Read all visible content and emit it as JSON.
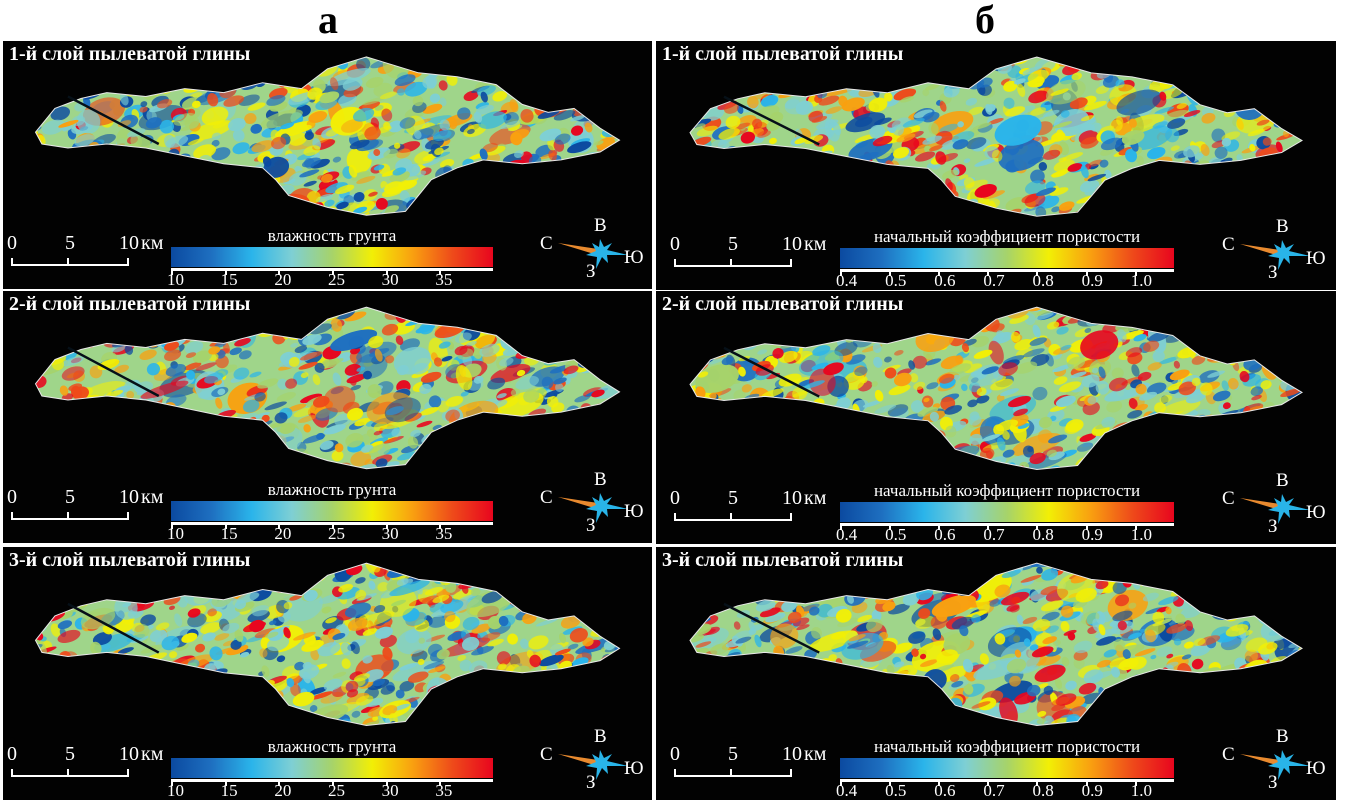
{
  "columns": [
    {
      "label": "а",
      "colorbar": {
        "title": "влажность грунта",
        "ticks": [
          "10",
          "15",
          "20",
          "25",
          "30",
          "35"
        ],
        "range": [
          10,
          40
        ],
        "tick_values": [
          10,
          15,
          20,
          25,
          30,
          35
        ]
      },
      "panels": [
        {
          "title": "1-й слой пылеватой глины"
        },
        {
          "title": "2-й слой пылеватой глины"
        },
        {
          "title": "3-й слой пылеватой глины"
        }
      ]
    },
    {
      "label": "б",
      "colorbar": {
        "title": "начальный коэффициент пористости",
        "ticks": [
          "0.4",
          "0.5",
          "0.6",
          "0.7",
          "0.8",
          "0.9",
          "1.0"
        ],
        "range": [
          0.4,
          1.08
        ],
        "tick_values": [
          0.4,
          0.5,
          0.6,
          0.7,
          0.8,
          0.9,
          1.0
        ]
      },
      "panels": [
        {
          "title": "1-й слой пылеватой глины"
        },
        {
          "title": "2-й слой пылеватой глины"
        },
        {
          "title": "3-й слой пылеватой глины"
        }
      ]
    }
  ],
  "scalebar": {
    "ticks": [
      "0",
      "5",
      "10"
    ],
    "unit": "км"
  },
  "compass": {
    "north": "С",
    "east": "В",
    "south": "Ю",
    "west": "З"
  },
  "colors": {
    "colormap": [
      "#0b4aa0",
      "#1e6fc0",
      "#2ab4ea",
      "#7ecfd4",
      "#a6d36a",
      "#f2ef05",
      "#f9a010",
      "#ee4a1a",
      "#e8051e"
    ],
    "background": "#020202",
    "border": "#ffffff",
    "compass_north": "#e88a2f",
    "compass_star": "#29b4e8"
  }
}
